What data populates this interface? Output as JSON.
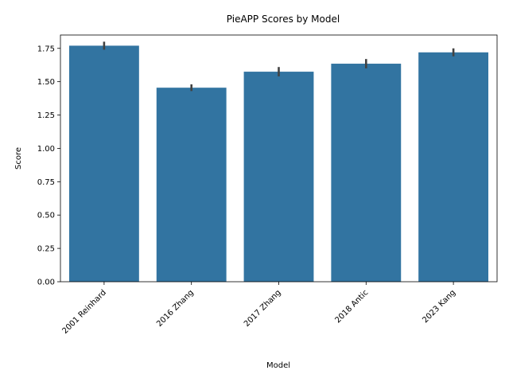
{
  "chart_data": {
    "type": "bar",
    "title": "PieAPP Scores by Model",
    "xlabel": "Model",
    "ylabel": "Score",
    "categories": [
      "2001 Reinhard",
      "2016 Zhang",
      "2017 Zhang",
      "2018 Antic",
      "2023 Kang"
    ],
    "values": [
      1.77,
      1.455,
      1.575,
      1.635,
      1.72
    ],
    "error_low": [
      1.74,
      1.43,
      1.54,
      1.6,
      1.69
    ],
    "error_high": [
      1.8,
      1.48,
      1.61,
      1.67,
      1.75
    ],
    "ylim": [
      0,
      1.85
    ],
    "yticks": [
      "0.00",
      "0.25",
      "0.50",
      "0.75",
      "1.00",
      "1.25",
      "1.50",
      "1.75"
    ],
    "ytick_values": [
      0,
      0.25,
      0.5,
      0.75,
      1.0,
      1.25,
      1.5,
      1.75
    ],
    "bar_color": "#3274a1",
    "error_color": "#424242",
    "grid": false,
    "legend": "none"
  }
}
